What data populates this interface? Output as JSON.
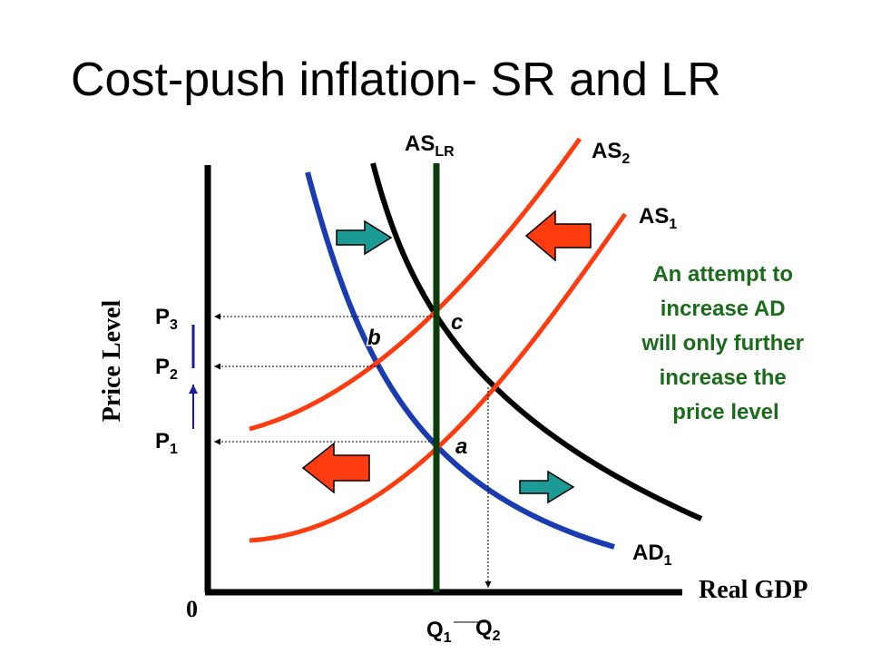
{
  "title": "Cost-push inflation- SR and LR",
  "axes": {
    "y_label": "Price Level",
    "x_label": "Real GDP",
    "origin": "0"
  },
  "curves": {
    "as_lr": {
      "base": "AS",
      "sub": "LR",
      "color": "#0b3d0b"
    },
    "as_2": {
      "base": "AS",
      "sub": "2",
      "color": "#ff3b10"
    },
    "as_1": {
      "base": "AS",
      "sub": "1",
      "color": "#ff3b10"
    },
    "ad_1": {
      "base": "AD",
      "sub": "1",
      "color": "#1a3cb0"
    },
    "ad_2": {
      "color": "#000000"
    }
  },
  "price_levels": [
    {
      "base": "P",
      "sub": "3"
    },
    {
      "base": "P",
      "sub": "2"
    },
    {
      "base": "P",
      "sub": "1"
    }
  ],
  "quantities": [
    {
      "base": "Q",
      "sub": "1"
    },
    {
      "base": "Q",
      "sub": "2"
    }
  ],
  "points": {
    "a": "a",
    "b": "b",
    "c": "c"
  },
  "note": [
    "An attempt to",
    "increase AD",
    "will only further",
    "increase the",
    "price level"
  ],
  "colors": {
    "shift_arrow_red": "#ff3b10",
    "shift_arrow_teal": "#1b9a96",
    "note_text": "#1a6b1a",
    "price_arrow": "#1a1aa0"
  }
}
